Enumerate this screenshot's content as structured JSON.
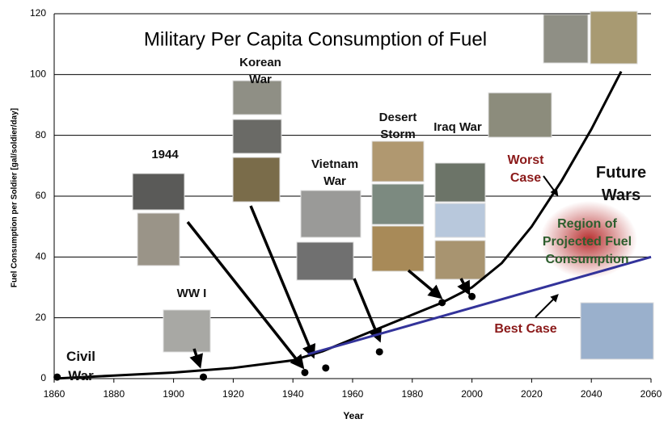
{
  "chart_data": {
    "type": "line",
    "title": "Military Per Capita Consumption of Fuel",
    "x_label": "Year",
    "y_label": "Fuel Consumption per Soldier [gal/soldier/day]",
    "xlim": [
      1860,
      2060
    ],
    "xticks": [
      1860,
      1880,
      1900,
      1920,
      1940,
      1960,
      1980,
      2000,
      2020,
      2040,
      2060
    ],
    "ylim": [
      0,
      120
    ],
    "yticks": [
      0,
      20,
      40,
      60,
      80,
      100,
      120
    ],
    "grid": true,
    "series": [
      {
        "type": "line",
        "color": "#000000",
        "x": [
          1860,
          1880,
          1900,
          1920,
          1940,
          1950,
          1960,
          1970,
          1980,
          1990,
          2000,
          2010,
          2020,
          2030,
          2040,
          2050
        ],
        "values": [
          0,
          1,
          2,
          3.5,
          6,
          9,
          13,
          17,
          21,
          25,
          30,
          38,
          50,
          65,
          82,
          101
        ]
      },
      {
        "type": "line",
        "color": "#33339a",
        "x": [
          1945,
          2060
        ],
        "values": [
          8,
          40
        ]
      },
      {
        "type": "scatter",
        "color": "#000000",
        "x": [
          1861,
          1910,
          1944,
          1951,
          1969,
          1990,
          2000
        ],
        "values": [
          0.5,
          0.5,
          2,
          3.5,
          8.8,
          25,
          27
        ]
      }
    ],
    "annotations": [
      "Civil War",
      "WW I",
      "1944",
      "Korean War",
      "Vietnam War",
      "Desert Storm",
      "Iraq War",
      "Worst Case",
      "Future Wars",
      "Region of Projected Fuel Consumption",
      "Best Case"
    ]
  }
}
